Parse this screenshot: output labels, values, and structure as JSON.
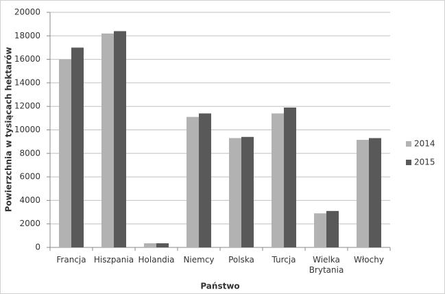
{
  "chart_data": {
    "type": "bar",
    "x_label": "Państwo",
    "y_label": "Powierzchnia w tysiącach hektarów",
    "categories": [
      "Francja",
      "Hiszpania",
      "Holandia",
      "Niemcy",
      "Polska",
      "Turcja",
      "Wielka Brytania",
      "Włochy"
    ],
    "series": [
      {
        "name": "2014",
        "color": "#b2b2b2",
        "values": [
          16000,
          18200,
          350,
          11100,
          9300,
          11400,
          2900,
          9150
        ]
      },
      {
        "name": "2015",
        "color": "#595959",
        "values": [
          17000,
          18400,
          350,
          11400,
          9400,
          11900,
          3100,
          9300
        ]
      }
    ],
    "ylim": [
      0,
      20000
    ],
    "yticks": [
      0,
      2000,
      4000,
      6000,
      8000,
      10000,
      12000,
      14000,
      16000,
      18000,
      20000
    ],
    "grid": true,
    "legend": "right"
  }
}
